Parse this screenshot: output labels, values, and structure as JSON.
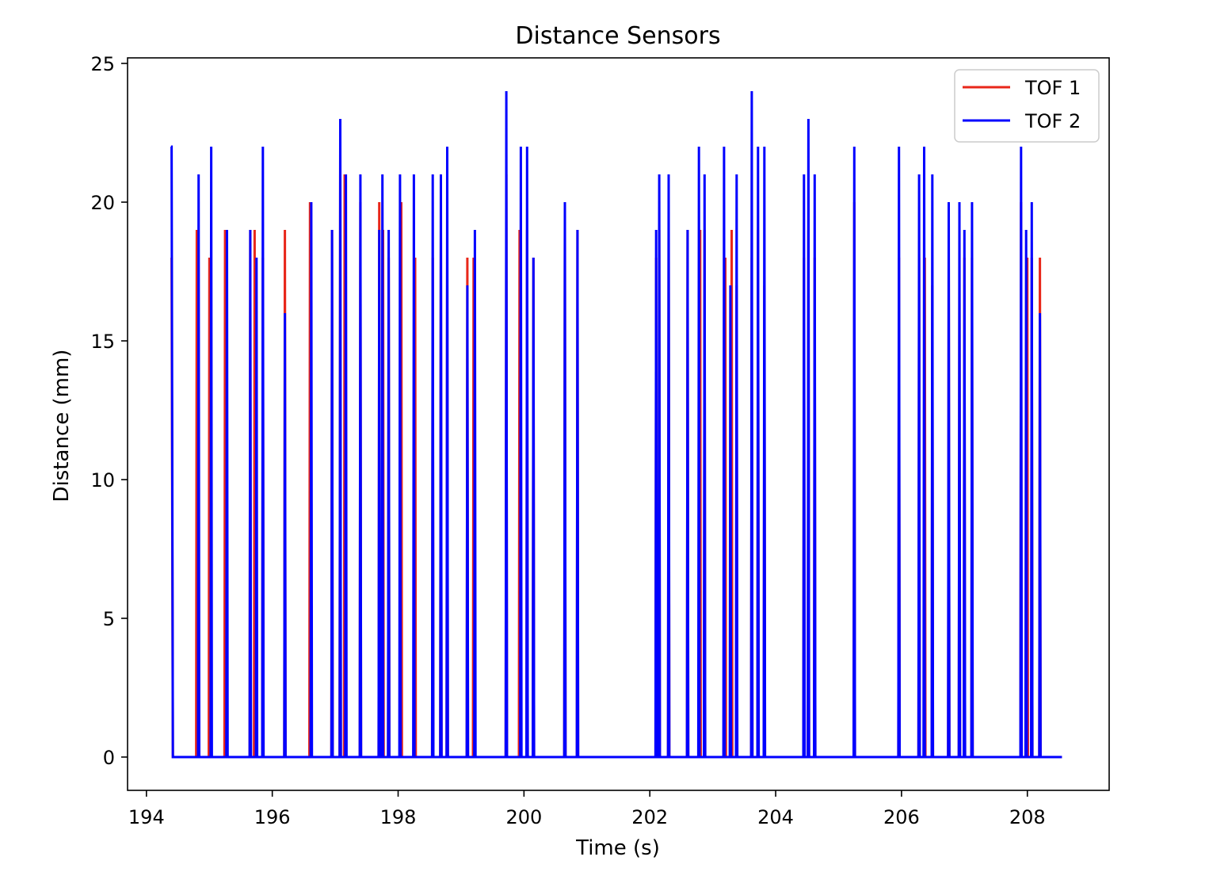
{
  "chart_data": {
    "type": "line",
    "title": "Distance Sensors",
    "xlabel": "Time (s)",
    "ylabel": "Distance (mm)",
    "xlim": [
      193.7,
      209.3
    ],
    "ylim": [
      -1.2,
      25.2
    ],
    "xticks": [
      194,
      196,
      198,
      200,
      202,
      204,
      206,
      208
    ],
    "yticks": [
      0,
      5,
      10,
      15,
      20,
      25
    ],
    "grid": false,
    "legend": "top-right",
    "x_end": 208.55,
    "series": [
      {
        "name": "TOF 1",
        "color": "#e8271a",
        "spikes": [
          [
            194.4,
            18
          ],
          [
            194.8,
            19
          ],
          [
            195.0,
            18
          ],
          [
            195.25,
            19
          ],
          [
            195.65,
            19
          ],
          [
            195.72,
            19
          ],
          [
            195.85,
            18
          ],
          [
            196.2,
            19
          ],
          [
            196.6,
            20
          ],
          [
            196.95,
            19
          ],
          [
            197.08,
            22
          ],
          [
            197.15,
            21
          ],
          [
            197.4,
            20
          ],
          [
            197.7,
            20
          ],
          [
            197.76,
            19
          ],
          [
            197.85,
            18
          ],
          [
            198.05,
            20
          ],
          [
            198.27,
            18
          ],
          [
            198.55,
            18
          ],
          [
            198.68,
            19
          ],
          [
            198.78,
            18
          ],
          [
            199.1,
            18
          ],
          [
            199.2,
            18
          ],
          [
            199.72,
            21
          ],
          [
            199.93,
            19
          ],
          [
            200.05,
            19
          ],
          [
            200.15,
            18
          ],
          [
            200.65,
            19
          ],
          [
            200.85,
            19
          ],
          [
            202.1,
            18
          ],
          [
            202.15,
            19
          ],
          [
            202.3,
            19
          ],
          [
            202.6,
            19
          ],
          [
            202.8,
            19
          ],
          [
            202.87,
            19
          ],
          [
            203.2,
            18
          ],
          [
            203.3,
            19
          ],
          [
            203.38,
            17
          ],
          [
            203.62,
            18
          ],
          [
            203.72,
            19
          ],
          [
            203.82,
            17
          ],
          [
            204.45,
            18
          ],
          [
            204.52,
            19
          ],
          [
            204.62,
            18
          ],
          [
            205.25,
            20
          ],
          [
            205.96,
            18
          ],
          [
            206.28,
            18
          ],
          [
            206.37,
            18
          ],
          [
            206.49,
            17
          ],
          [
            206.75,
            18
          ],
          [
            206.92,
            17
          ],
          [
            207.0,
            18
          ],
          [
            207.12,
            18
          ],
          [
            207.9,
            20
          ],
          [
            208.0,
            18
          ],
          [
            208.07,
            18
          ],
          [
            208.2,
            18
          ]
        ]
      },
      {
        "name": "TOF 2",
        "color": "#0000ff",
        "spikes": [
          [
            194.4,
            22
          ],
          [
            194.83,
            21
          ],
          [
            195.03,
            22
          ],
          [
            195.28,
            19
          ],
          [
            195.65,
            19
          ],
          [
            195.75,
            18
          ],
          [
            195.85,
            22
          ],
          [
            196.2,
            16
          ],
          [
            196.62,
            20
          ],
          [
            196.95,
            19
          ],
          [
            197.08,
            23
          ],
          [
            197.17,
            21
          ],
          [
            197.4,
            21
          ],
          [
            197.7,
            19
          ],
          [
            197.75,
            21
          ],
          [
            197.85,
            19
          ],
          [
            198.03,
            21
          ],
          [
            198.25,
            21
          ],
          [
            198.55,
            21
          ],
          [
            198.68,
            21
          ],
          [
            198.78,
            22
          ],
          [
            199.1,
            17
          ],
          [
            199.22,
            19
          ],
          [
            199.72,
            24
          ],
          [
            199.95,
            22
          ],
          [
            200.05,
            22
          ],
          [
            200.15,
            18
          ],
          [
            200.65,
            20
          ],
          [
            200.85,
            19
          ],
          [
            202.1,
            19
          ],
          [
            202.15,
            21
          ],
          [
            202.3,
            21
          ],
          [
            202.6,
            19
          ],
          [
            202.78,
            22
          ],
          [
            202.87,
            21
          ],
          [
            203.18,
            22
          ],
          [
            203.28,
            17
          ],
          [
            203.38,
            21
          ],
          [
            203.62,
            24
          ],
          [
            203.72,
            22
          ],
          [
            203.82,
            22
          ],
          [
            204.45,
            21
          ],
          [
            204.52,
            23
          ],
          [
            204.62,
            21
          ],
          [
            205.25,
            22
          ],
          [
            205.96,
            22
          ],
          [
            206.28,
            21
          ],
          [
            206.36,
            22
          ],
          [
            206.49,
            21
          ],
          [
            206.75,
            20
          ],
          [
            206.92,
            20
          ],
          [
            207.0,
            19
          ],
          [
            207.12,
            20
          ],
          [
            207.9,
            22
          ],
          [
            207.98,
            19
          ],
          [
            208.07,
            20
          ],
          [
            208.2,
            16
          ]
        ]
      }
    ]
  }
}
